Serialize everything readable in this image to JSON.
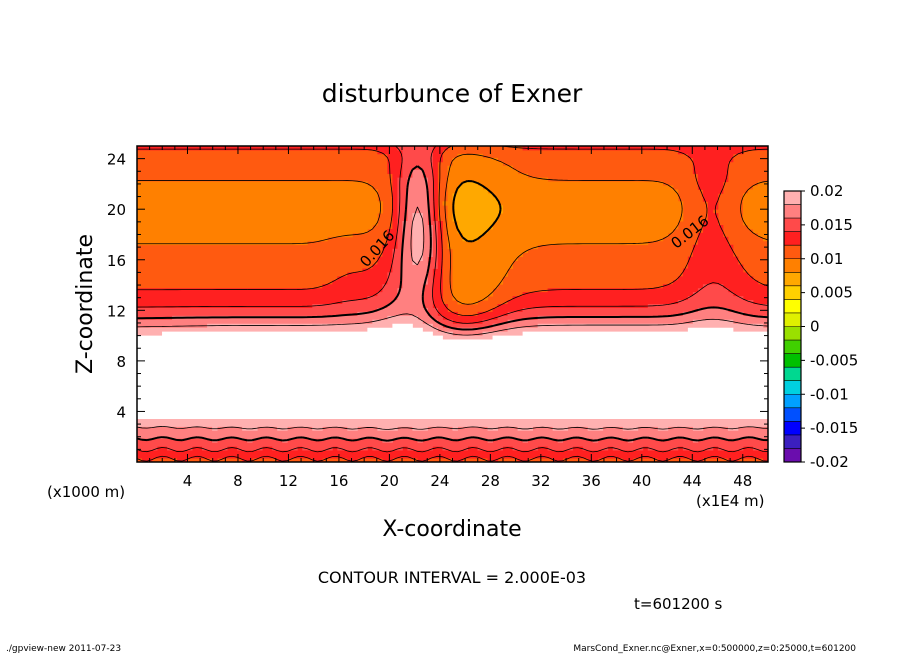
{
  "chart_data": {
    "type": "heatmap",
    "subtype": "filled-contour",
    "title": "disturbunce of Exner",
    "xlabel": "X-coordinate",
    "ylabel": "Z-coordinate",
    "x_units_left": "(x1000 m)",
    "x_units_right": "(x1E4 m)",
    "xlim": [
      0,
      50
    ],
    "ylim": [
      0,
      25
    ],
    "xticks": [
      4,
      8,
      12,
      16,
      20,
      24,
      28,
      32,
      36,
      40,
      44,
      48
    ],
    "yticks": [
      4,
      8,
      12,
      16,
      20,
      24
    ],
    "xtick_labels": [
      "4",
      "8",
      "12",
      "16",
      "20",
      "24",
      "28",
      "32",
      "36",
      "40",
      "44",
      "48"
    ],
    "ytick_labels": [
      "4",
      "8",
      "12",
      "16",
      "20",
      "24"
    ],
    "colorbar": {
      "min": -0.02,
      "max": 0.02,
      "step": 0.002,
      "tick_labels": [
        "0.02",
        "0.015",
        "0.01",
        "0.005",
        "0",
        "-0.005",
        "-0.01",
        "-0.015",
        "-0.02"
      ],
      "colors": [
        "#6a0dad",
        "#3b1fbf",
        "#0000ff",
        "#0050ff",
        "#00a0ff",
        "#00d0e0",
        "#00d890",
        "#00c000",
        "#40d000",
        "#9ae000",
        "#e0f000",
        "#ffff00",
        "#ffd000",
        "#ffa800",
        "#ff8000",
        "#ff5a10",
        "#ff2020",
        "#ff4a4a",
        "#ff8080",
        "#ffb0b0"
      ]
    },
    "contour_labels": [
      {
        "text": "0.016",
        "x": 18.7,
        "z": 17.4
      },
      {
        "text": "0.016",
        "x": 44.0,
        "z": 18.5
      }
    ],
    "contour_interval_text": "CONTOUR INTERVAL = 2.000E-03",
    "time_text": "t=601200 s"
  },
  "footer": {
    "left": "./gpview-new   2011-07-23",
    "right": "MarsCond_Exner.nc@Exner,x=0:500000,z=0:25000,t=601200"
  }
}
